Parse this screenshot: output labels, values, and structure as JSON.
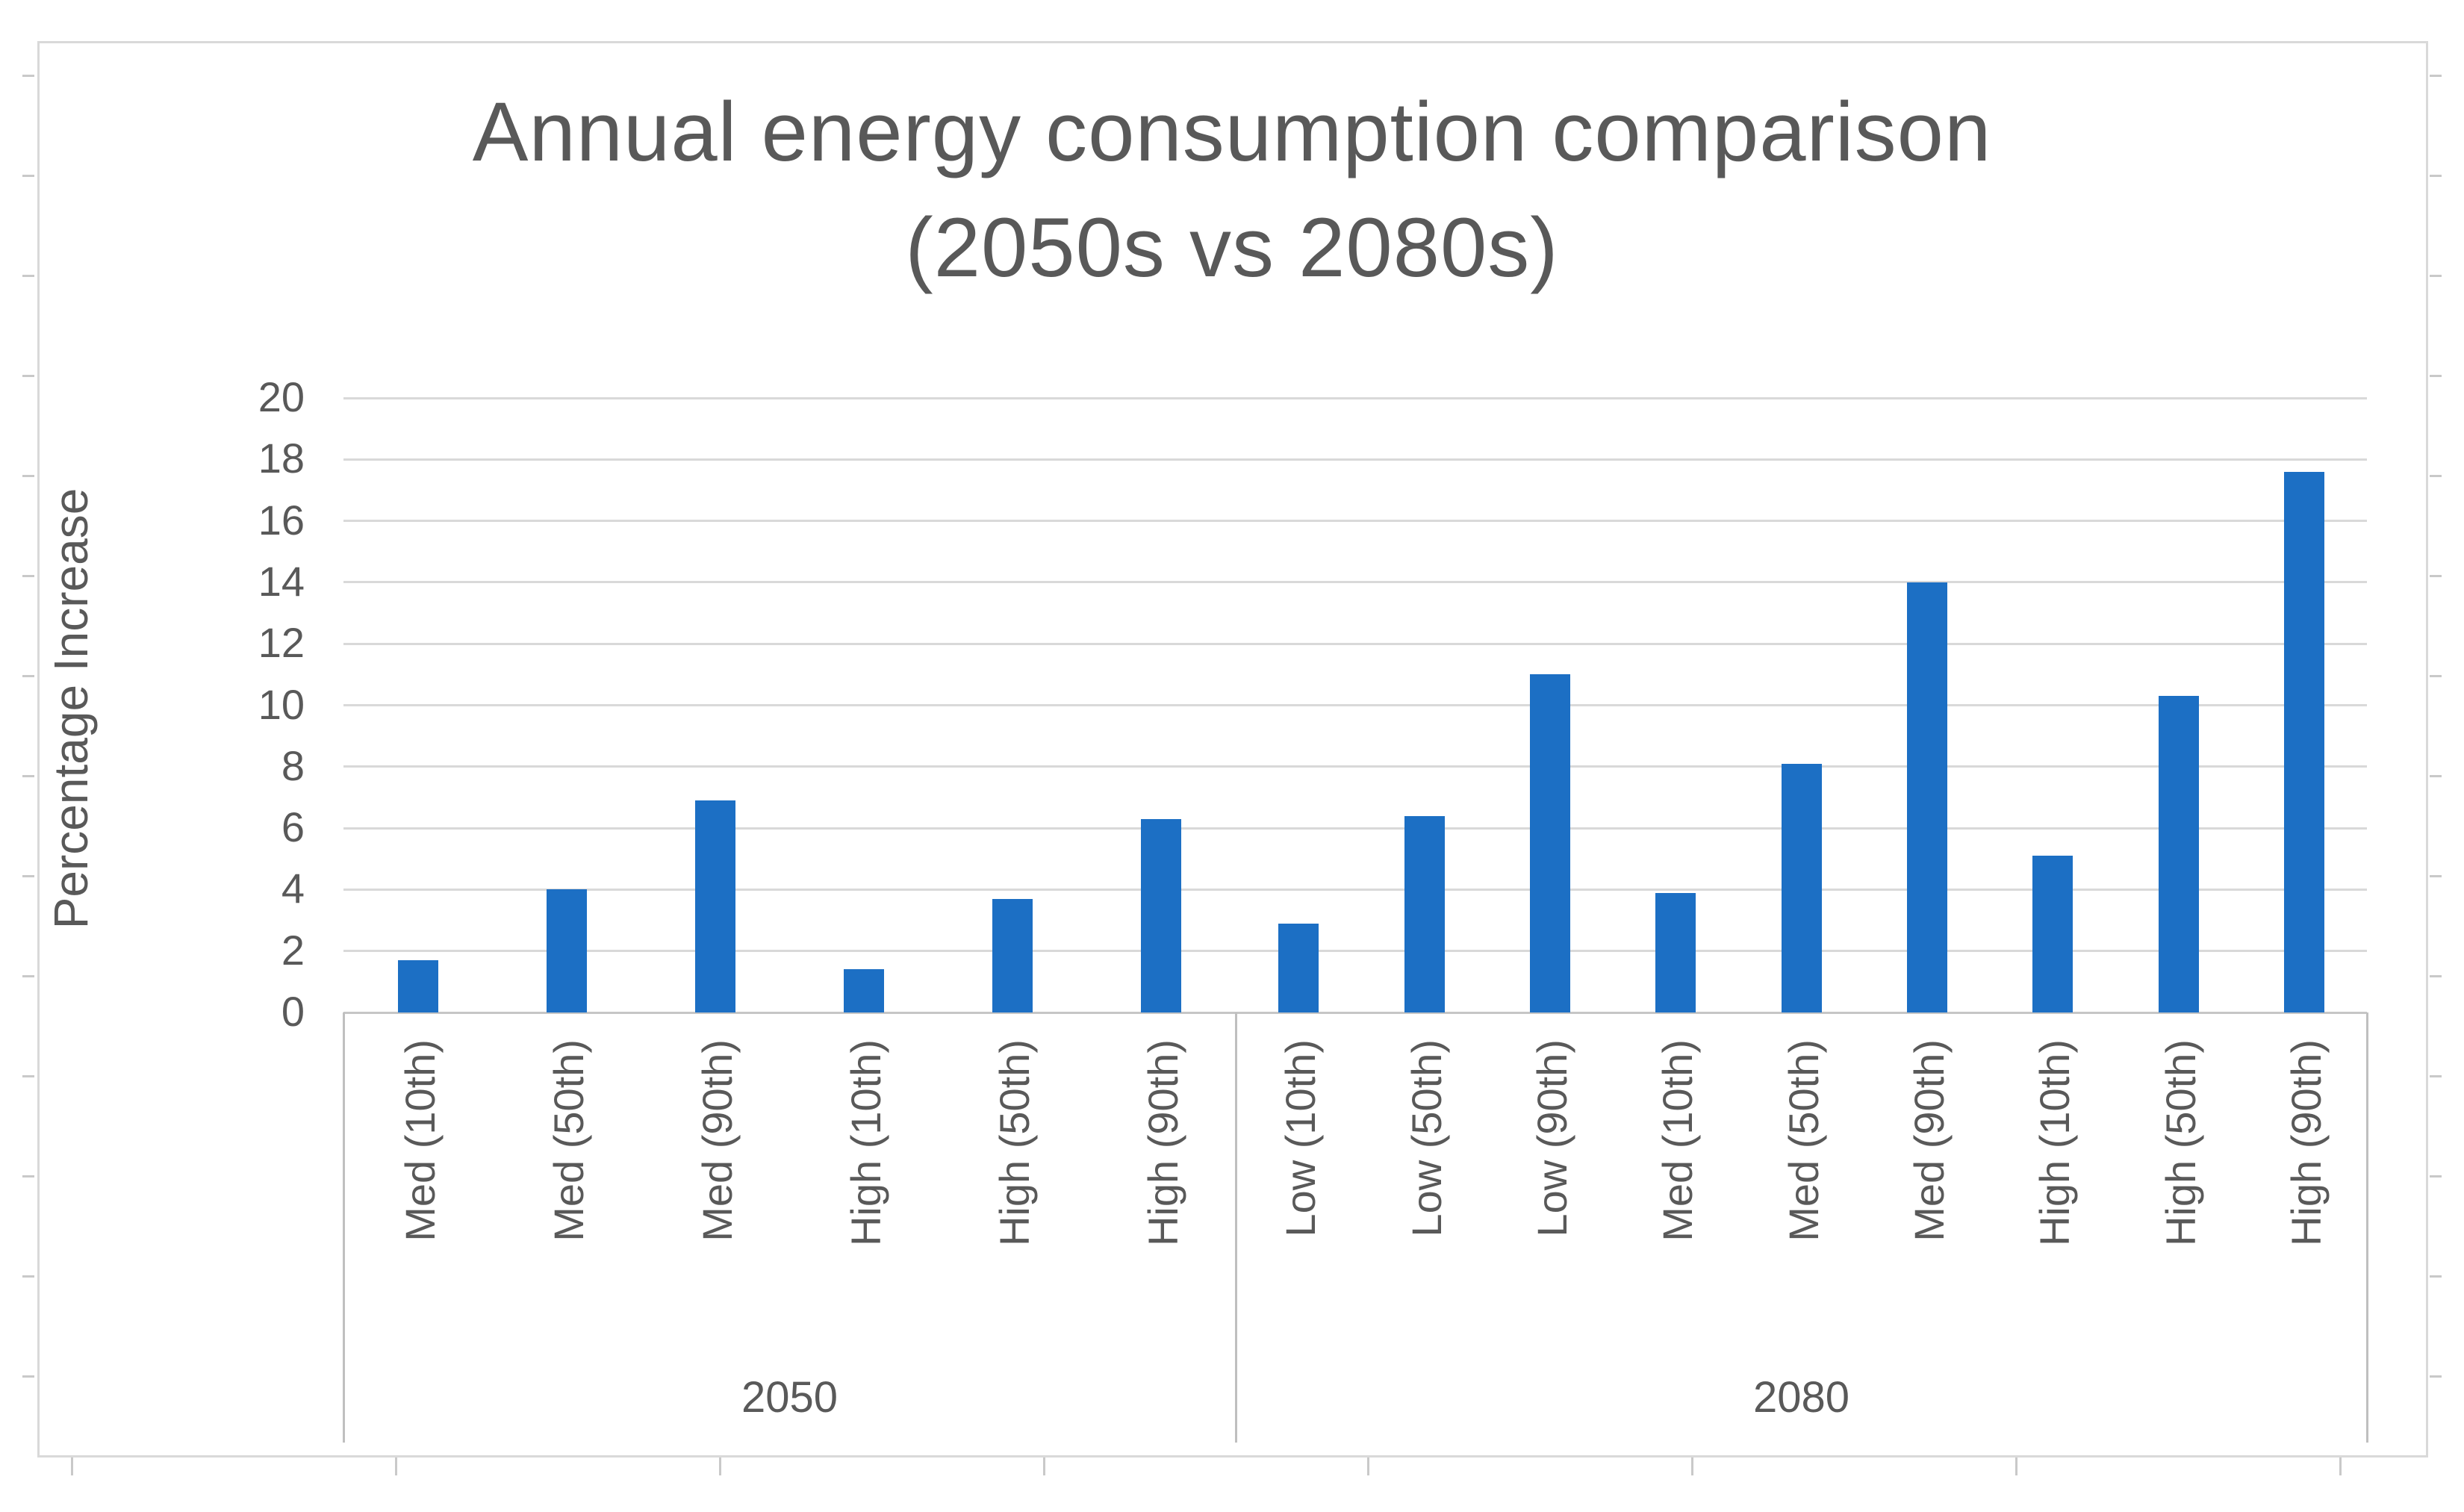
{
  "title": {
    "line1": "Annual energy consumption comparison",
    "line2": "(2050s vs 2080s)"
  },
  "chart_data": {
    "type": "bar",
    "title": "Annual energy consumption comparison (2050s vs 2080s)",
    "xlabel": "",
    "ylabel": "Percentage Increase",
    "ylim": [
      0,
      20
    ],
    "ytick_step": 2,
    "yticks": [
      0,
      2,
      4,
      6,
      8,
      10,
      12,
      14,
      16,
      18,
      20
    ],
    "grid": true,
    "legend": false,
    "bar_color": "#1c6fc4",
    "groups": [
      {
        "label": "2050",
        "categories": [
          "Med (10th)",
          "Med (50th)",
          "Med (90th)",
          "High (10th)",
          "High (50th)",
          "High (90th)"
        ],
        "values": [
          1.7,
          4.0,
          6.9,
          1.4,
          3.7,
          6.3
        ]
      },
      {
        "label": "2080",
        "categories": [
          "Low (10th)",
          "Low (50th)",
          "Low (90th)",
          "Med (10th)",
          "Med (50th)",
          "Med (90th)",
          "High (10th)",
          "High (50th)",
          "High (90th)"
        ],
        "values": [
          2.9,
          6.4,
          11.0,
          3.9,
          8.1,
          14.0,
          5.1,
          10.3,
          17.6
        ]
      }
    ]
  },
  "colors": {
    "bar": "#1c6fc4",
    "gridline": "#d9d9d9",
    "axis_text": "#595959",
    "separator": "#bfbfbf",
    "frame": "#d9d9d9"
  }
}
